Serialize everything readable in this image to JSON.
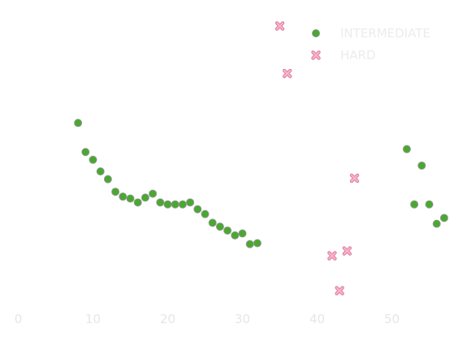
{
  "chart_data": {
    "type": "scatter",
    "title": "",
    "xlabel": "",
    "ylabel": "",
    "xlim": [
      0,
      57.5
    ],
    "ylim": [
      -2.03,
      -1.7
    ],
    "x_ticks": [
      "0",
      "10",
      "20",
      "30",
      "40",
      "50"
    ],
    "grid": false,
    "legend_position": "top-right",
    "series": [
      {
        "name": "INTERMEDIATE",
        "marker": "circle",
        "color": "#4aa832",
        "edge_color": "#9a9a9a",
        "points": [
          [
            8,
            -1.824
          ],
          [
            9,
            -1.854
          ],
          [
            10,
            -1.862
          ],
          [
            11,
            -1.874
          ],
          [
            12,
            -1.882
          ],
          [
            13,
            -1.895
          ],
          [
            14,
            -1.9
          ],
          [
            15,
            -1.902
          ],
          [
            16,
            -1.906
          ],
          [
            17,
            -1.901
          ],
          [
            18,
            -1.897
          ],
          [
            19,
            -1.906
          ],
          [
            20,
            -1.908
          ],
          [
            21,
            -1.908
          ],
          [
            22,
            -1.908
          ],
          [
            23,
            -1.906
          ],
          [
            24,
            -1.913
          ],
          [
            25,
            -1.918
          ],
          [
            26,
            -1.927
          ],
          [
            27,
            -1.931
          ],
          [
            28,
            -1.935
          ],
          [
            29,
            -1.94
          ],
          [
            30,
            -1.938
          ],
          [
            31,
            -1.949
          ],
          [
            32,
            -1.948
          ],
          [
            52,
            -1.851
          ],
          [
            53,
            -1.908
          ],
          [
            54,
            -1.868
          ],
          [
            55,
            -1.908
          ],
          [
            56,
            -1.928
          ],
          [
            57,
            -1.922
          ]
        ]
      },
      {
        "name": "HARD",
        "marker": "x",
        "color": "#f6b6c8",
        "edge_color": "#e07a9e",
        "points": [
          [
            35,
            -1.724
          ],
          [
            36,
            -1.773
          ],
          [
            42,
            -1.961
          ],
          [
            43,
            -1.997
          ],
          [
            44,
            -1.956
          ],
          [
            45,
            -1.881
          ]
        ]
      }
    ]
  }
}
